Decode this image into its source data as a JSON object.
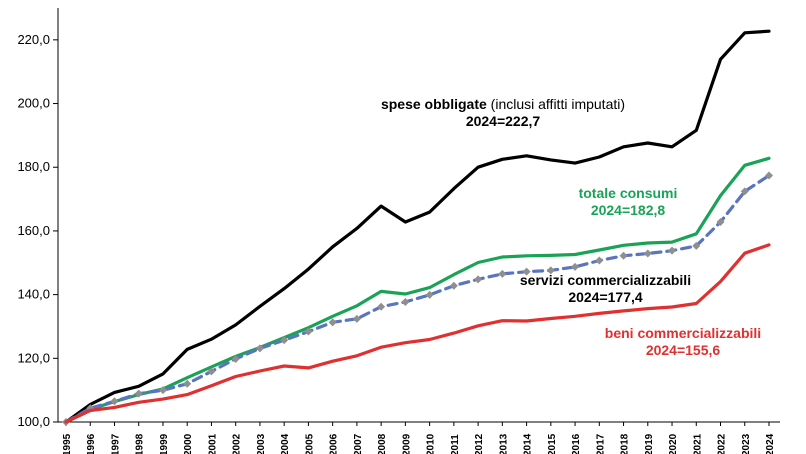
{
  "chart_data": {
    "type": "line",
    "title": "",
    "xlabel": "",
    "ylabel": "",
    "ylim": [
      100,
      230
    ],
    "yticks": [
      "100,0",
      "120,0",
      "140,0",
      "160,0",
      "180,0",
      "200,0",
      "220,0"
    ],
    "ytick_values": [
      100,
      120,
      140,
      160,
      180,
      200,
      220
    ],
    "x": [
      "1995",
      "1996",
      "1997",
      "1998",
      "1999",
      "2000",
      "2001",
      "2002",
      "2003",
      "2004",
      "2005",
      "2006",
      "2007",
      "2008",
      "2009",
      "2010",
      "2011",
      "2012",
      "2013",
      "2014",
      "2015",
      "2016",
      "2017",
      "2018",
      "2019",
      "2020",
      "2021",
      "2022",
      "2023",
      "2024"
    ],
    "grid": false,
    "series": [
      {
        "name": "spese obbligate",
        "color": "#000000",
        "style": "solid",
        "values": [
          100,
          105.5,
          109.3,
          111.2,
          115.1,
          122.8,
          126,
          130.5,
          136.3,
          141.9,
          148,
          155,
          160.8,
          167.8,
          162.8,
          165.9,
          173.3,
          180,
          182.5,
          183.6,
          182.3,
          181.3,
          183.2,
          186.4,
          187.6,
          186.4,
          191.6,
          213.9,
          222.2,
          222.7
        ]
      },
      {
        "name": "totale consumi",
        "color": "#1aa356",
        "style": "solid",
        "values": [
          100,
          104,
          106.4,
          108.6,
          110.4,
          113.9,
          117.3,
          120.6,
          123.4,
          126.5,
          129.6,
          133.2,
          136.5,
          141,
          140.2,
          142.2,
          146.3,
          150.1,
          151.8,
          152.2,
          152.3,
          152.6,
          154,
          155.5,
          156.2,
          156.5,
          159.1,
          171.1,
          180.6,
          182.8
        ]
      },
      {
        "name": "servizi commercializzabili",
        "color": "#5a75c0",
        "style": "dashed",
        "values": [
          100,
          104.3,
          106.5,
          108.9,
          110,
          112,
          115.9,
          119.8,
          123.1,
          125.7,
          128.4,
          131.3,
          132.4,
          136.2,
          137.7,
          139.9,
          142.8,
          144.8,
          146.5,
          147.2,
          147.6,
          148.7,
          150.7,
          152.2,
          152.9,
          153.8,
          155.3,
          162.8,
          172.4,
          177.4
        ]
      },
      {
        "name": "beni commercializzabili",
        "color": "#e03030",
        "style": "solid",
        "values": [
          100,
          103.6,
          104.6,
          106.2,
          107.2,
          108.6,
          111.4,
          114.3,
          116,
          117.6,
          117,
          119.1,
          120.8,
          123.5,
          124.9,
          125.9,
          127.9,
          130.2,
          131.8,
          131.7,
          132.5,
          133.2,
          134.1,
          134.9,
          135.6,
          136.1,
          137.2,
          144.1,
          153,
          155.6
        ]
      }
    ],
    "annotations": [
      {
        "name": "spese obbligate",
        "label_bold": "spese obbligate",
        "label_normal": " (inclusi affitti imputati)",
        "value_text": "2024=222,7",
        "color": "#000000"
      },
      {
        "name": "totale consumi",
        "label_bold": "totale consumi",
        "label_normal": "",
        "value_text": "2024=182,8",
        "color": "#1aa356"
      },
      {
        "name": "servizi commercializzabili",
        "label_bold": "servizi commercializzabili",
        "label_normal": "",
        "value_text": "2024=177,4",
        "color": "#000000"
      },
      {
        "name": "beni commercializzabili",
        "label_bold": "beni commercializzabili",
        "label_normal": "",
        "value_text": "2024=155,6",
        "color": "#e03030"
      }
    ]
  }
}
